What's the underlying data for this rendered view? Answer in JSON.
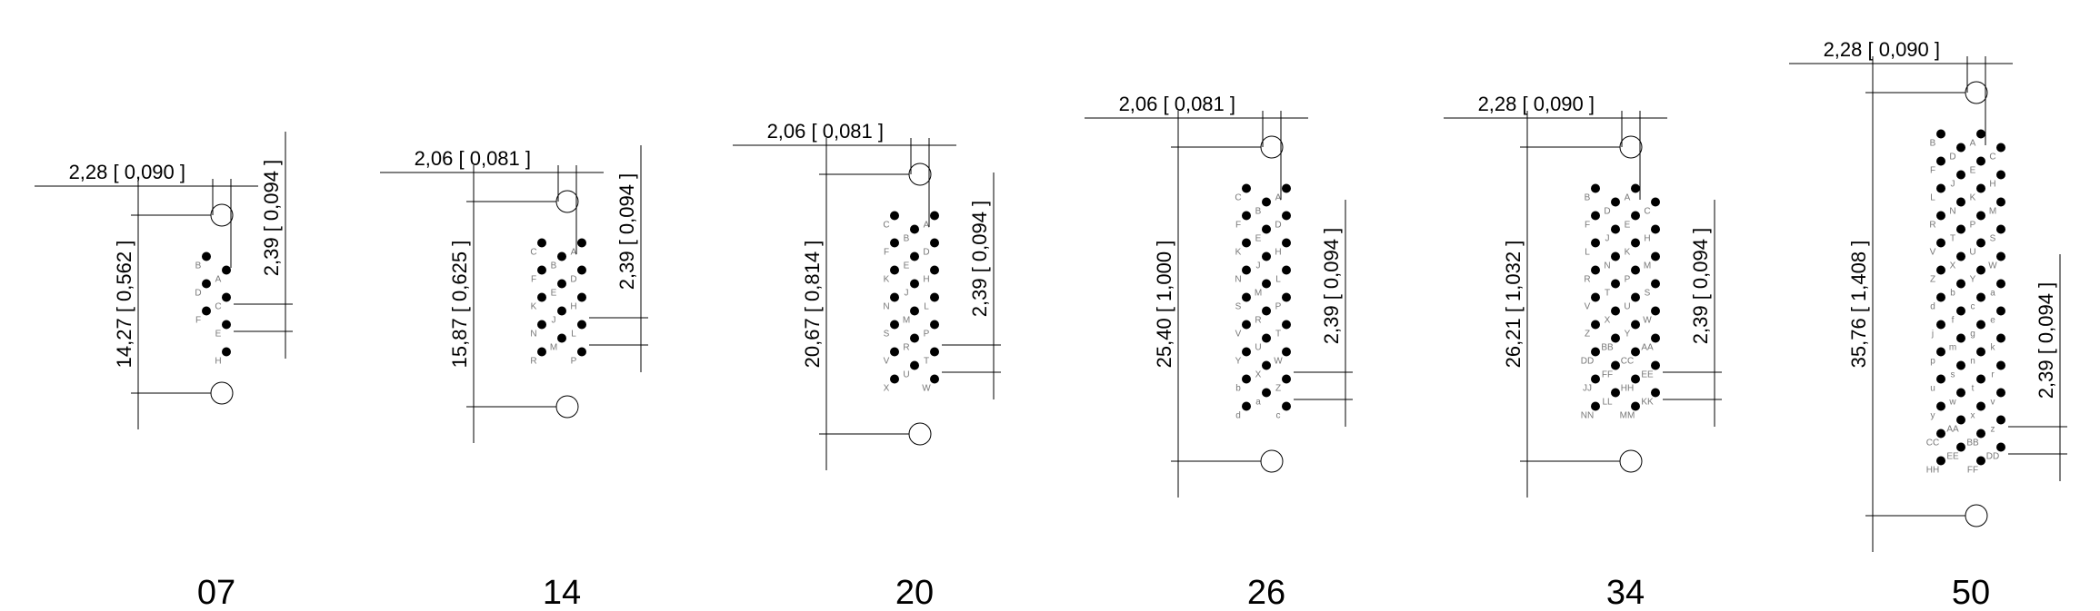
{
  "connectors": [
    {
      "label": "07",
      "top_dim": "2,28 [ 0,090 ]",
      "height_dim": "14,27 [ 0,562 ]",
      "pitch_dim": "2,39 [ 0,094 ]",
      "columns": [
        [
          "B",
          "D",
          "F"
        ],
        [
          "A",
          "C",
          "E",
          "H"
        ]
      ]
    },
    {
      "label": "14",
      "top_dim": "2,06 [ 0,081 ]",
      "height_dim": "15,87 [ 0,625 ]",
      "pitch_dim": "2,39 [ 0,094 ]",
      "columns": [
        [
          "C",
          "F",
          "K",
          "N",
          "R"
        ],
        [
          "B",
          "E",
          "J",
          "M"
        ],
        [
          "A",
          "D",
          "H",
          "L",
          "P"
        ]
      ]
    },
    {
      "label": "20",
      "top_dim": "2,06 [ 0,081 ]",
      "height_dim": "20,67 [ 0,814 ]",
      "pitch_dim": "2,39 [ 0,094 ]",
      "columns": [
        [
          "C",
          "F",
          "K",
          "N",
          "S",
          "V",
          "X"
        ],
        [
          "B",
          "E",
          "J",
          "M",
          "R",
          "U"
        ],
        [
          "A",
          "D",
          "H",
          "L",
          "P",
          "T",
          "W"
        ]
      ]
    },
    {
      "label": "26",
      "top_dim": "2,06 [ 0,081 ]",
      "height_dim": "25,40 [ 1,000 ]",
      "pitch_dim": "2,39 [ 0,094 ]",
      "columns": [
        [
          "C",
          "F",
          "K",
          "N",
          "S",
          "V",
          "Y",
          "b",
          "d"
        ],
        [
          "B",
          "E",
          "J",
          "M",
          "R",
          "U",
          "X",
          "a"
        ],
        [
          "A",
          "D",
          "H",
          "L",
          "P",
          "T",
          "W",
          "Z",
          "c"
        ]
      ]
    },
    {
      "label": "34",
      "top_dim": "2,28 [ 0,090 ]",
      "height_dim": "26,21 [ 1,032 ]",
      "pitch_dim": "2,39 [ 0,094 ]",
      "columns": [
        [
          "B",
          "F",
          "L",
          "R",
          "V",
          "Z",
          "DD",
          "JJ",
          "NN"
        ],
        [
          "D",
          "J",
          "N",
          "T",
          "X",
          "BB",
          "FF",
          "LL"
        ],
        [
          "A",
          "E",
          "K",
          "P",
          "U",
          "Y",
          "CC",
          "HH",
          "MM"
        ],
        [
          "C",
          "H",
          "M",
          "S",
          "W",
          "AA",
          "EE",
          "KK"
        ]
      ]
    },
    {
      "label": "50",
      "top_dim": "2,28 [ 0,090 ]",
      "height_dim": "35,76 [ 1,408 ]",
      "pitch_dim": "2,39 [ 0,094 ]",
      "columns": [
        [
          "B",
          "F",
          "L",
          "R",
          "V",
          "Z",
          "d",
          "j",
          "p",
          "u",
          "y",
          "CC",
          "HH"
        ],
        [
          "D",
          "J",
          "N",
          "T",
          "X",
          "b",
          "f",
          "m",
          "s",
          "w",
          "AA",
          "EE"
        ],
        [
          "A",
          "E",
          "K",
          "P",
          "U",
          "Y",
          "c",
          "g",
          "n",
          "t",
          "x",
          "BB",
          "FF"
        ],
        [
          "C",
          "H",
          "M",
          "S",
          "W",
          "a",
          "e",
          "k",
          "r",
          "v",
          "z",
          "DD"
        ]
      ]
    }
  ]
}
